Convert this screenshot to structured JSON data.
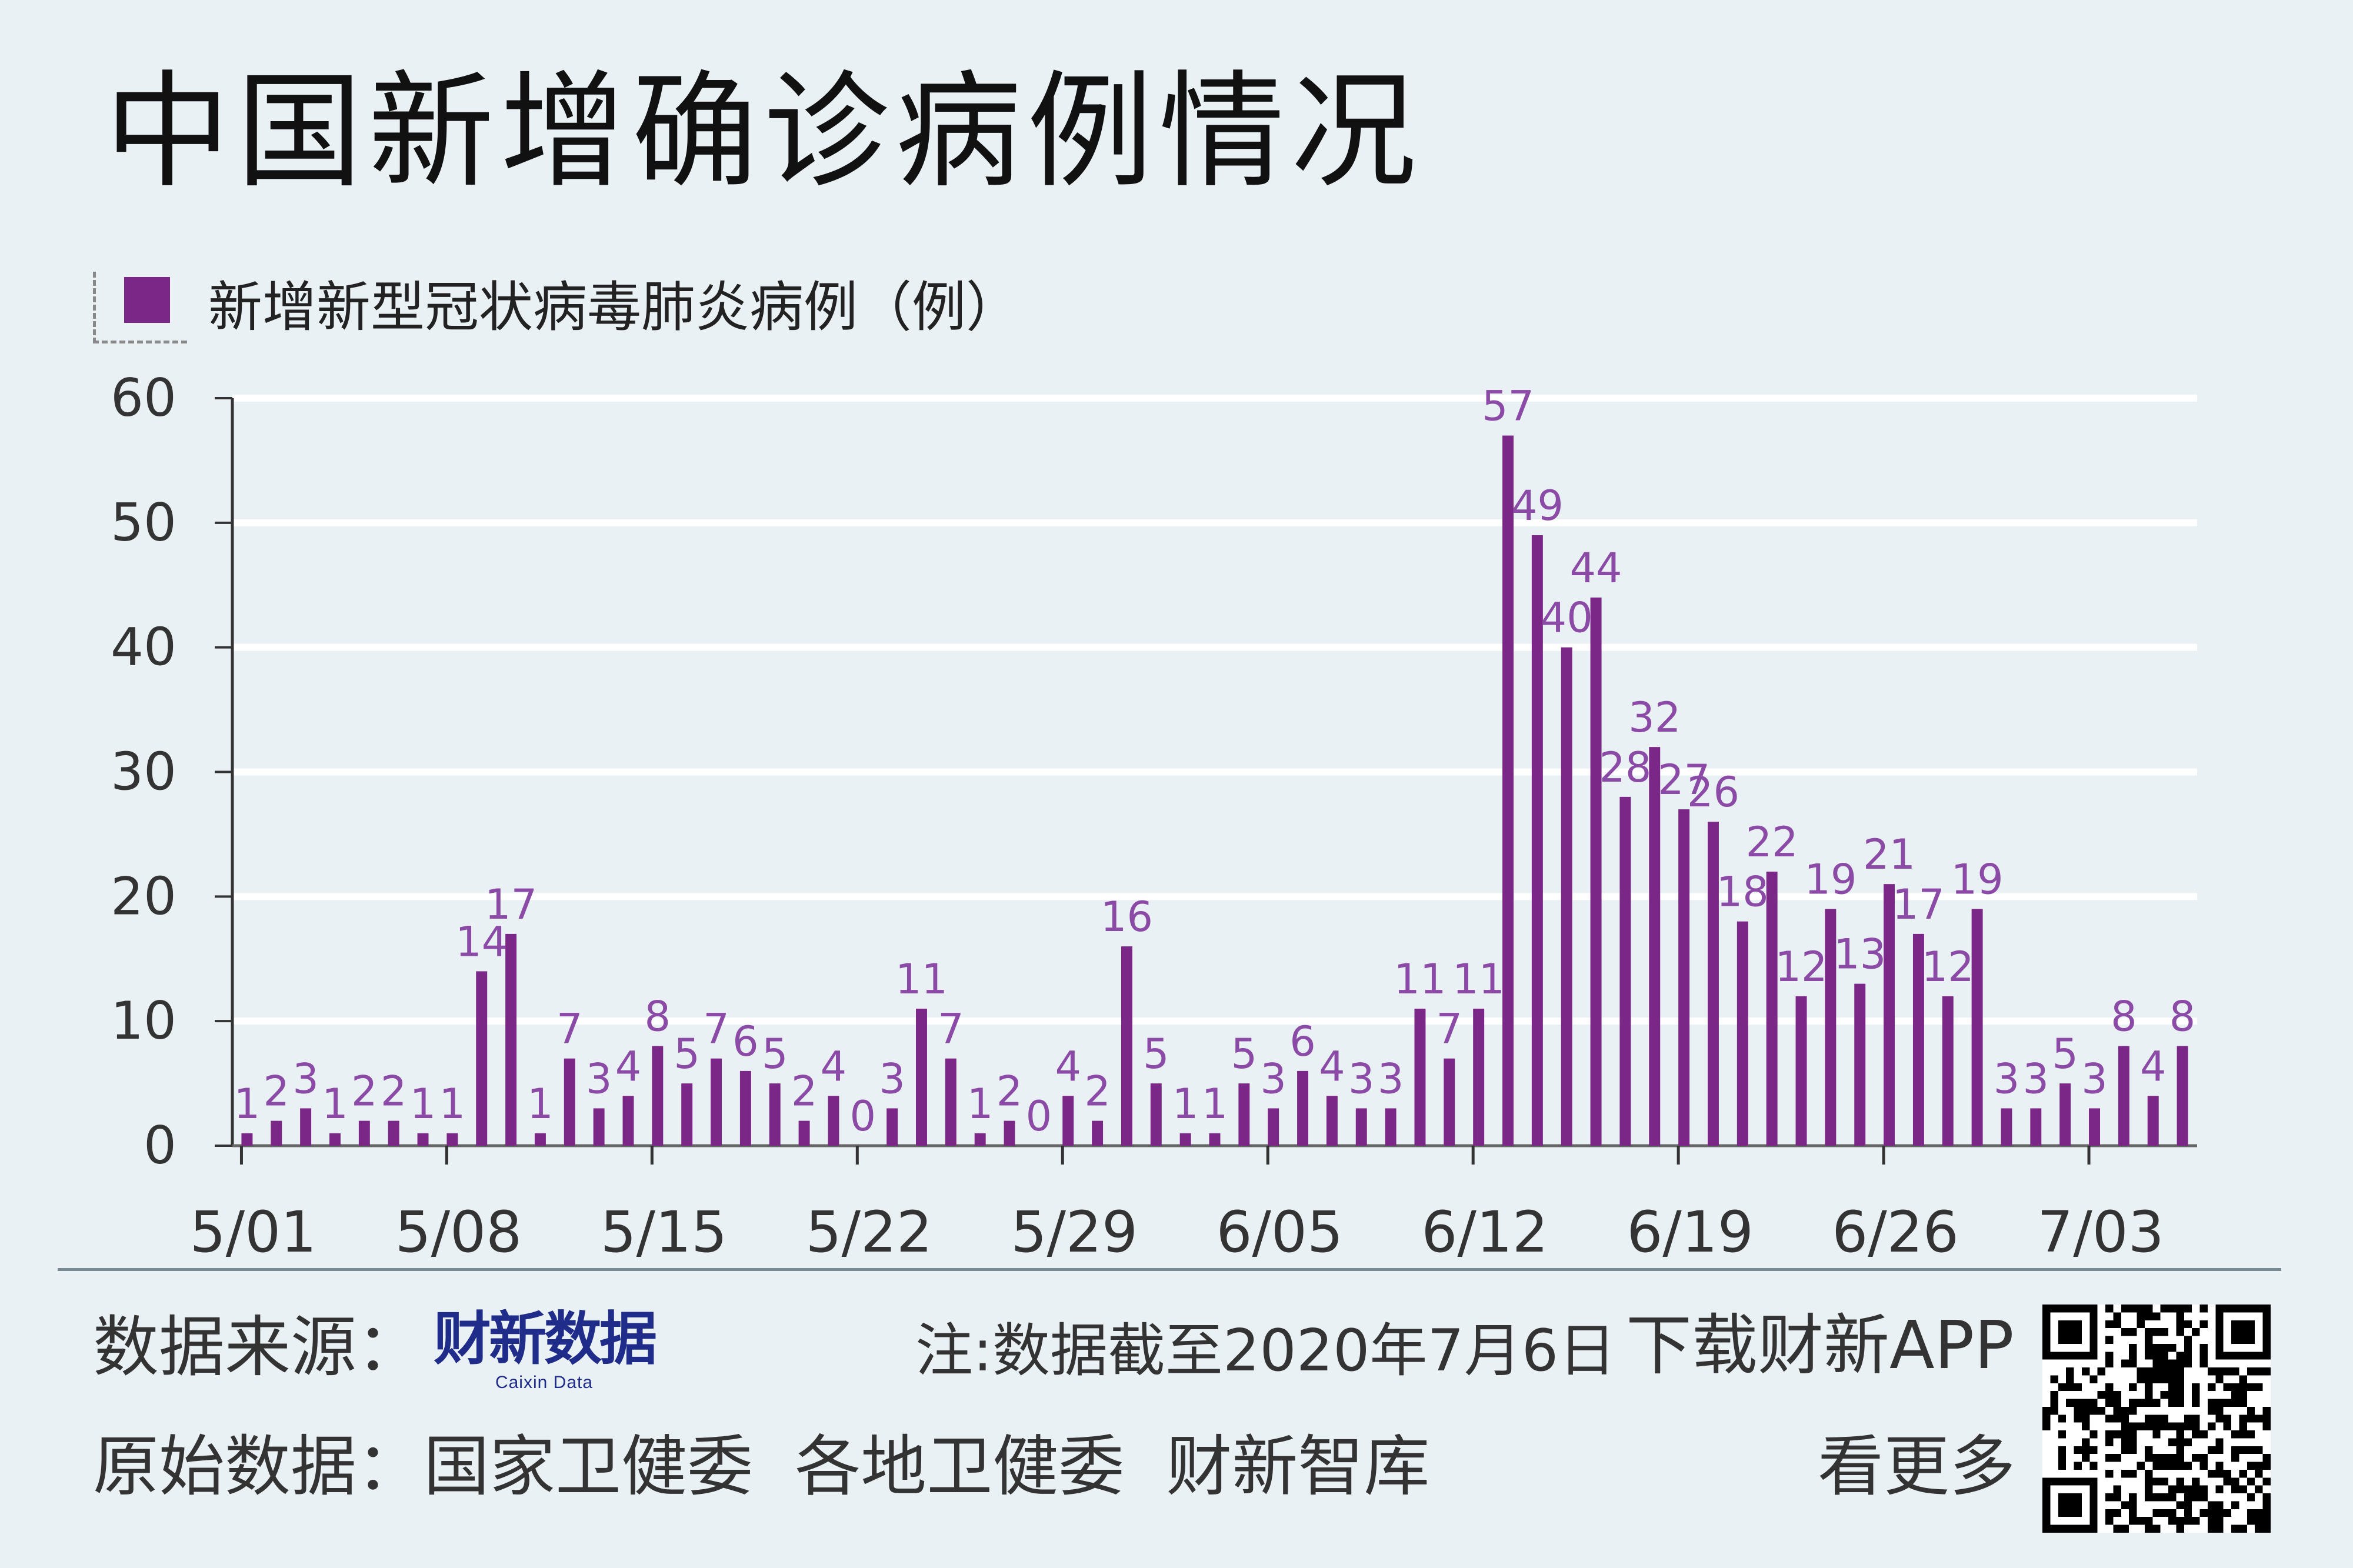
{
  "title": "中国新增确诊病例情况",
  "legend": {
    "label": "新增新型冠状病毒肺炎病例（例）",
    "color": "#7b2787"
  },
  "chart_data": {
    "type": "bar",
    "ylim": [
      0,
      60
    ],
    "yticks": [
      0,
      10,
      20,
      30,
      40,
      50,
      60
    ],
    "grid": true,
    "legend_position": "top-left",
    "bar_color": "#7b2787",
    "label_color": "#8a4aa6",
    "x_tick_labels": [
      "5/01",
      "5/08",
      "5/15",
      "5/22",
      "5/29",
      "6/05",
      "6/12",
      "6/19",
      "6/26",
      "7/03"
    ],
    "x_tick_every": 7,
    "values": [
      1,
      2,
      3,
      1,
      2,
      2,
      1,
      1,
      14,
      17,
      1,
      7,
      3,
      4,
      8,
      5,
      7,
      6,
      5,
      2,
      4,
      0,
      3,
      11,
      7,
      1,
      2,
      0,
      4,
      2,
      16,
      5,
      1,
      1,
      5,
      3,
      6,
      4,
      3,
      3,
      11,
      7,
      11,
      57,
      49,
      40,
      44,
      28,
      32,
      27,
      26,
      18,
      22,
      12,
      19,
      13,
      21,
      17,
      12,
      19,
      3,
      3,
      5,
      3,
      8,
      4,
      8
    ]
  },
  "footer": {
    "source_label": "数据来源：",
    "brand_name": "财新数据",
    "brand_sub": "Caixin Data",
    "note": "注:数据截至2020年7月6日",
    "download": "下载财新APP",
    "raw_label": "原始数据：",
    "raw_sources": "国家卫健委  各地卫健委  财新智库",
    "more": "看更多"
  }
}
